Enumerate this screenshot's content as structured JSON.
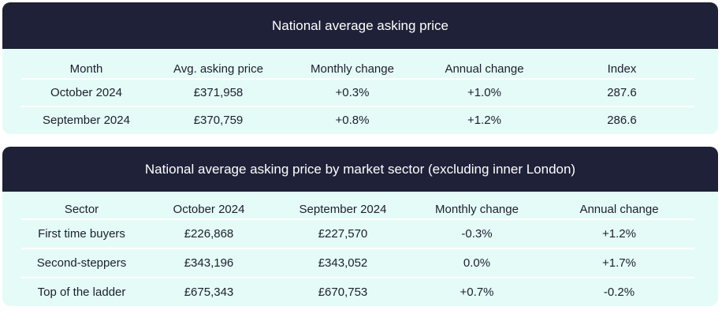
{
  "panel1": {
    "title": "National average asking price",
    "columns": [
      "Month",
      "Avg. asking price",
      "Monthly change",
      "Annual change",
      "Index"
    ],
    "rows": [
      [
        "October 2024",
        "£371,958",
        "+0.3%",
        "+1.0%",
        "287.6"
      ],
      [
        "September 2024",
        "£370,759",
        "+0.8%",
        "+1.2%",
        "286.6"
      ]
    ]
  },
  "panel2": {
    "title": "National average asking price by market sector (excluding inner London)",
    "columns": [
      "Sector",
      "October 2024",
      "September 2024",
      "Monthly change",
      "Annual change"
    ],
    "rows": [
      [
        "First time buyers",
        "£226,868",
        "£227,570",
        "-0.3%",
        "+1.2%"
      ],
      [
        "Second-steppers",
        "£343,196",
        "£343,052",
        "0.0%",
        "+1.7%"
      ],
      [
        "Top of the ladder",
        "£675,343",
        "£670,753",
        "+0.7%",
        "-0.2%"
      ]
    ]
  },
  "colors": {
    "header_bg": "#1e2137",
    "panel_bg": "#e5fbf7",
    "divider": "#ffffff"
  }
}
